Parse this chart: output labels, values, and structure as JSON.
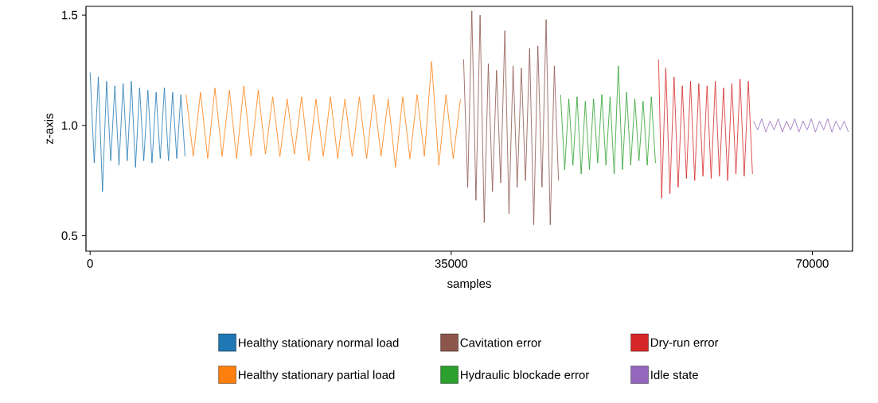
{
  "chart_data": {
    "type": "line",
    "xlabel": "samples",
    "ylabel": "z-axis",
    "xlim": [
      -400,
      73900
    ],
    "ylim": [
      0.43,
      1.54
    ],
    "xticks": [
      0,
      35000,
      70000
    ],
    "yticks": [
      0.5,
      {
        "value": 1.0,
        "label": "1.0"
      },
      1.5
    ],
    "grid": false,
    "legend": "bottom",
    "marker": "none",
    "line_style": "solid",
    "series": [
      {
        "name": "Healthy stationary normal load",
        "color": "#1f77b4",
        "x": [
          0,
          400,
          800,
          1200,
          1600,
          2000,
          2400,
          2800,
          3200,
          3600,
          4000,
          4400,
          4800,
          5200,
          5600,
          6000,
          6400,
          6800,
          7200,
          7600,
          8000,
          8400,
          8800,
          9200
        ],
        "values": [
          1.24,
          0.83,
          1.22,
          0.7,
          1.2,
          0.84,
          1.18,
          0.82,
          1.19,
          0.84,
          1.2,
          0.81,
          1.17,
          0.84,
          1.16,
          0.83,
          1.15,
          0.85,
          1.17,
          0.84,
          1.15,
          0.85,
          1.14,
          0.86
        ]
      },
      {
        "name": "Healthy stationary partial load",
        "color": "#ff7f0e",
        "x": [
          9300,
          10000,
          10700,
          11400,
          12100,
          12800,
          13500,
          14200,
          14900,
          15600,
          16300,
          17000,
          17700,
          18400,
          19100,
          19800,
          20500,
          21200,
          21900,
          22600,
          23300,
          24000,
          24700,
          25400,
          26100,
          26800,
          27500,
          28200,
          28900,
          29600,
          30300,
          31000,
          31700,
          32400,
          33100,
          33800,
          34500,
          35200,
          35900
        ],
        "values": [
          1.14,
          0.86,
          1.15,
          0.85,
          1.17,
          0.86,
          1.16,
          0.85,
          1.18,
          0.86,
          1.16,
          0.87,
          1.13,
          0.86,
          1.12,
          0.87,
          1.13,
          0.84,
          1.12,
          0.86,
          1.13,
          0.85,
          1.12,
          0.86,
          1.13,
          0.85,
          1.14,
          0.86,
          1.12,
          0.81,
          1.13,
          0.85,
          1.14,
          0.86,
          1.29,
          0.82,
          1.14,
          0.85,
          1.12
        ]
      },
      {
        "name": "Cavitation error",
        "color": "#8c564b",
        "x": [
          36200,
          36600,
          37000,
          37400,
          37800,
          38200,
          38600,
          39000,
          39400,
          39800,
          40200,
          40600,
          41000,
          41400,
          41800,
          42200,
          42600,
          43000,
          43400,
          43800,
          44200,
          44600,
          45000,
          45400
        ],
        "values": [
          1.3,
          0.72,
          1.52,
          0.66,
          1.5,
          0.56,
          1.28,
          0.7,
          1.25,
          0.74,
          1.43,
          0.6,
          1.27,
          0.72,
          1.26,
          0.75,
          1.35,
          0.55,
          1.36,
          0.72,
          1.48,
          0.55,
          1.27,
          0.75
        ]
      },
      {
        "name": "Hydraulic blockade error",
        "color": "#2ca02c",
        "x": [
          45600,
          46000,
          46400,
          46800,
          47200,
          47600,
          48000,
          48400,
          48800,
          49200,
          49600,
          50000,
          50400,
          50800,
          51200,
          51600,
          52000,
          52400,
          52800,
          53200,
          53600,
          54000,
          54400,
          54800
        ],
        "values": [
          1.14,
          0.8,
          1.12,
          0.82,
          1.13,
          0.78,
          1.11,
          0.8,
          1.12,
          0.83,
          1.14,
          0.82,
          1.13,
          0.78,
          1.27,
          0.8,
          1.15,
          0.82,
          1.12,
          0.84,
          1.11,
          0.82,
          1.13,
          0.83
        ]
      },
      {
        "name": "Dry-run error",
        "color": "#d62728",
        "x": [
          55100,
          55400,
          55800,
          56200,
          56600,
          57000,
          57400,
          57800,
          58200,
          58600,
          59000,
          59400,
          59800,
          60200,
          60600,
          61000,
          61400,
          61800,
          62200,
          62600,
          63000,
          63400,
          63800,
          64200
        ],
        "values": [
          1.3,
          0.67,
          1.26,
          0.69,
          1.22,
          0.72,
          1.18,
          0.76,
          1.2,
          0.75,
          1.19,
          0.77,
          1.18,
          0.76,
          1.2,
          0.77,
          1.17,
          0.75,
          1.19,
          0.78,
          1.21,
          0.77,
          1.2,
          0.78
        ]
      },
      {
        "name": "Idle state",
        "color": "#9467bd",
        "x": [
          64300,
          64700,
          65100,
          65500,
          65900,
          66300,
          66700,
          67100,
          67500,
          67900,
          68300,
          68700,
          69100,
          69500,
          69900,
          70300,
          70700,
          71100,
          71500,
          71900,
          72300,
          72700,
          73100,
          73500
        ],
        "values": [
          1.02,
          0.98,
          1.03,
          0.97,
          1.02,
          0.98,
          1.03,
          0.97,
          1.02,
          0.98,
          1.03,
          0.97,
          1.02,
          0.98,
          1.03,
          0.97,
          1.02,
          0.98,
          1.03,
          0.97,
          1.02,
          0.98,
          1.02,
          0.97
        ]
      }
    ]
  }
}
